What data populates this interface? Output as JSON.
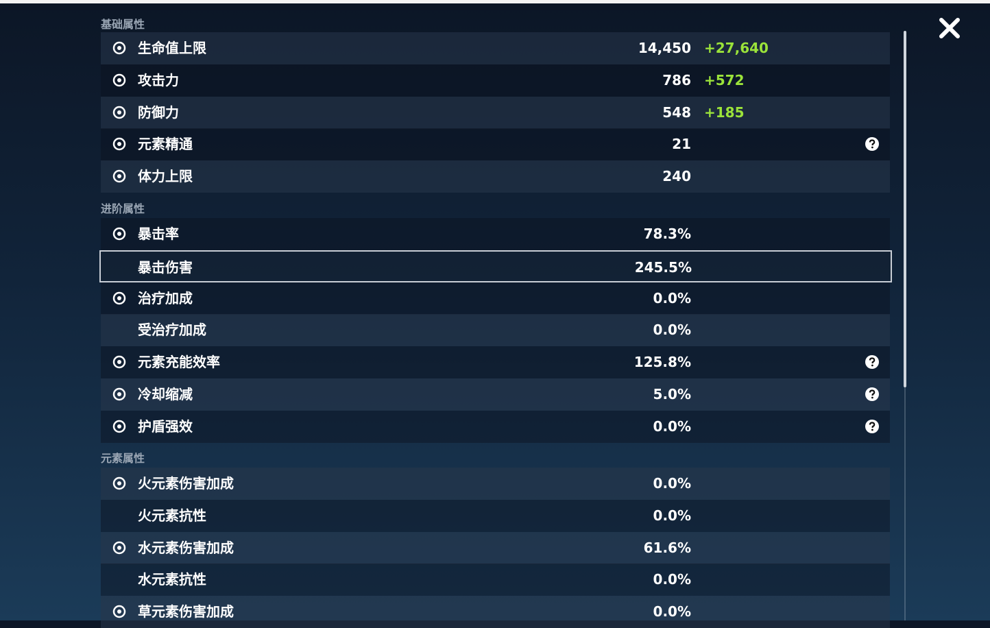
{
  "sections": [
    {
      "title": "基础属性",
      "rows": [
        {
          "label": "生命值上限",
          "value": "14,450",
          "bonus": "+27,640",
          "icon": true
        },
        {
          "label": "攻击力",
          "value": "786",
          "bonus": "+572",
          "icon": true
        },
        {
          "label": "防御力",
          "value": "548",
          "bonus": "+185",
          "icon": true
        },
        {
          "label": "元素精通",
          "value": "21",
          "icon": true,
          "help": true
        },
        {
          "label": "体力上限",
          "value": "240",
          "icon": true
        }
      ]
    },
    {
      "title": "进阶属性",
      "rows": [
        {
          "label": "暴击率",
          "value": "78.3%",
          "icon": true
        },
        {
          "label": "暴击伤害",
          "value": "245.5%",
          "selected": true
        },
        {
          "label": "治疗加成",
          "value": "0.0%",
          "icon": true
        },
        {
          "label": "受治疗加成",
          "value": "0.0%"
        },
        {
          "label": "元素充能效率",
          "value": "125.8%",
          "icon": true,
          "help": true
        },
        {
          "label": "冷却缩减",
          "value": "5.0%",
          "icon": true,
          "help": true
        },
        {
          "label": "护盾强效",
          "value": "0.0%",
          "icon": true,
          "help": true
        }
      ]
    },
    {
      "title": "元素属性",
      "rows": [
        {
          "label": "火元素伤害加成",
          "value": "0.0%",
          "icon": true
        },
        {
          "label": "火元素抗性",
          "value": "0.0%"
        },
        {
          "label": "水元素伤害加成",
          "value": "61.6%",
          "icon": true
        },
        {
          "label": "水元素抗性",
          "value": "0.0%"
        },
        {
          "label": "草元素伤害加成",
          "value": "0.0%",
          "icon": true
        }
      ]
    }
  ]
}
